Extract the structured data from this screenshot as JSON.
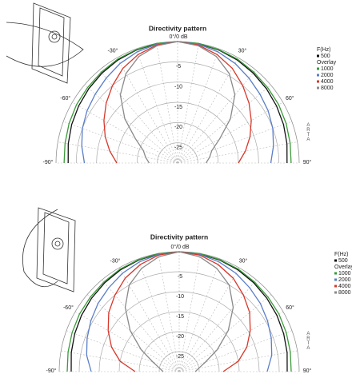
{
  "chart_data": [
    {
      "type": "polar",
      "title": "Directivity pattern",
      "theta": [
        -90,
        -80,
        -70,
        -60,
        -50,
        -40,
        -30,
        -20,
        -10,
        0,
        10,
        20,
        30,
        40,
        50,
        60,
        70,
        80,
        90
      ],
      "thetaticks": [
        {
          "value": -90,
          "label": "-90°"
        },
        {
          "value": -60,
          "label": "-60°"
        },
        {
          "value": -30,
          "label": "-30°"
        },
        {
          "value": 30,
          "label": "30°"
        },
        {
          "value": 60,
          "label": "60°"
        },
        {
          "value": 90,
          "label": "90°"
        }
      ],
      "rlim": [
        -30,
        0
      ],
      "rticks": [
        {
          "value": 0,
          "label": "0°/0 dB"
        },
        -5,
        -10,
        -15,
        -20,
        -25
      ],
      "grid": true,
      "legend_title": "F(Hz)",
      "overlay_label": "Overlay",
      "watermark": "ARTA",
      "series": [
        {
          "name": "500",
          "color": "#111111",
          "values": [
            -3,
            -2.6,
            -2.2,
            -1.8,
            -1.4,
            -1,
            -0.6,
            -0.3,
            -0.1,
            0,
            -0.1,
            -0.3,
            -0.6,
            -1,
            -1.4,
            -1.8,
            -2.2,
            -2.6,
            -3
          ]
        },
        {
          "name": "1000",
          "color": "#3a9a3a",
          "values": [
            -2,
            -1.8,
            -1.5,
            -1.2,
            -1,
            -0.7,
            -0.4,
            -0.2,
            0,
            0,
            0,
            -0.2,
            -0.4,
            -0.7,
            -1,
            -1.2,
            -1.5,
            -1.8,
            -2
          ]
        },
        {
          "name": "2000",
          "color": "#5a7ec8",
          "values": [
            -7,
            -6,
            -5,
            -4.2,
            -3.5,
            -2.6,
            -1.6,
            -0.8,
            -0.2,
            0,
            -0.2,
            -0.8,
            -1.6,
            -2.6,
            -3.5,
            -4.2,
            -5,
            -6,
            -7
          ]
        },
        {
          "name": "4000",
          "color": "#d8372a",
          "values": [
            -15,
            -13,
            -11,
            -9,
            -7,
            -5,
            -3,
            -1.5,
            -0.4,
            0,
            -0.4,
            -1.5,
            -3,
            -5,
            -7,
            -9,
            -11,
            -13,
            -15
          ]
        },
        {
          "name": "8000",
          "color": "#8a8a8a",
          "values": [
            -23,
            -22,
            -21,
            -18,
            -13,
            -8,
            -4.5,
            -2,
            -0.6,
            0,
            -0.6,
            -2,
            -4.5,
            -8,
            -13,
            -18,
            -21,
            -22,
            -23
          ]
        }
      ]
    },
    {
      "type": "polar",
      "title": "Directivity pattern",
      "theta": [
        -90,
        -80,
        -70,
        -60,
        -50,
        -40,
        -30,
        -20,
        -10,
        0,
        10,
        20,
        30,
        40,
        50,
        60,
        70,
        80,
        90
      ],
      "thetaticks": [
        {
          "value": -90,
          "label": "-90°"
        },
        {
          "value": -60,
          "label": "-60°"
        },
        {
          "value": -30,
          "label": "-30°"
        },
        {
          "value": 30,
          "label": "30°"
        },
        {
          "value": 60,
          "label": "60°"
        },
        {
          "value": 90,
          "label": "90°"
        }
      ],
      "rlim": [
        -30,
        0
      ],
      "rticks": [
        {
          "value": 0,
          "label": "0°/0 dB"
        },
        -5,
        -10,
        -15,
        -20,
        -25
      ],
      "grid": true,
      "legend_title": "F(Hz)",
      "overlay_label": "Overlay",
      "watermark": "ARTA",
      "series": [
        {
          "name": "500",
          "color": "#111111",
          "values": [
            -3,
            -2.6,
            -2.2,
            -1.8,
            -1.4,
            -1,
            -0.6,
            -0.3,
            -0.1,
            0,
            -0.1,
            -0.3,
            -0.6,
            -1,
            -1.4,
            -1.8,
            -2.2,
            -2.6,
            -3
          ]
        },
        {
          "name": "1000",
          "color": "#3a9a3a",
          "values": [
            -2,
            -1.8,
            -1.5,
            -1.2,
            -1,
            -0.7,
            -0.4,
            -0.2,
            0,
            0,
            0,
            -0.2,
            -0.4,
            -0.7,
            -1,
            -1.2,
            -1.5,
            -1.8,
            -2
          ]
        },
        {
          "name": "2000",
          "color": "#5a7ec8",
          "values": [
            -8,
            -6.5,
            -5.5,
            -4.5,
            -3.5,
            -2.6,
            -1.6,
            -0.8,
            -0.2,
            0,
            -0.2,
            -0.8,
            -1.6,
            -2.6,
            -3.5,
            -4.5,
            -5.5,
            -6.5,
            -8
          ]
        },
        {
          "name": "4000",
          "color": "#d8372a",
          "values": [
            -19,
            -15,
            -12,
            -9.5,
            -7,
            -5,
            -3,
            -1.5,
            -0.4,
            0,
            -0.4,
            -1.5,
            -3,
            -5,
            -7,
            -9.5,
            -12,
            -15,
            -19
          ]
        },
        {
          "name": "8000",
          "color": "#8a8a8a",
          "values": [
            -26,
            -25,
            -23,
            -19,
            -14,
            -9,
            -5,
            -2.5,
            -0.8,
            0,
            -0.8,
            -2.5,
            -5,
            -9,
            -14,
            -19,
            -23,
            -25,
            -26
          ]
        }
      ]
    }
  ]
}
